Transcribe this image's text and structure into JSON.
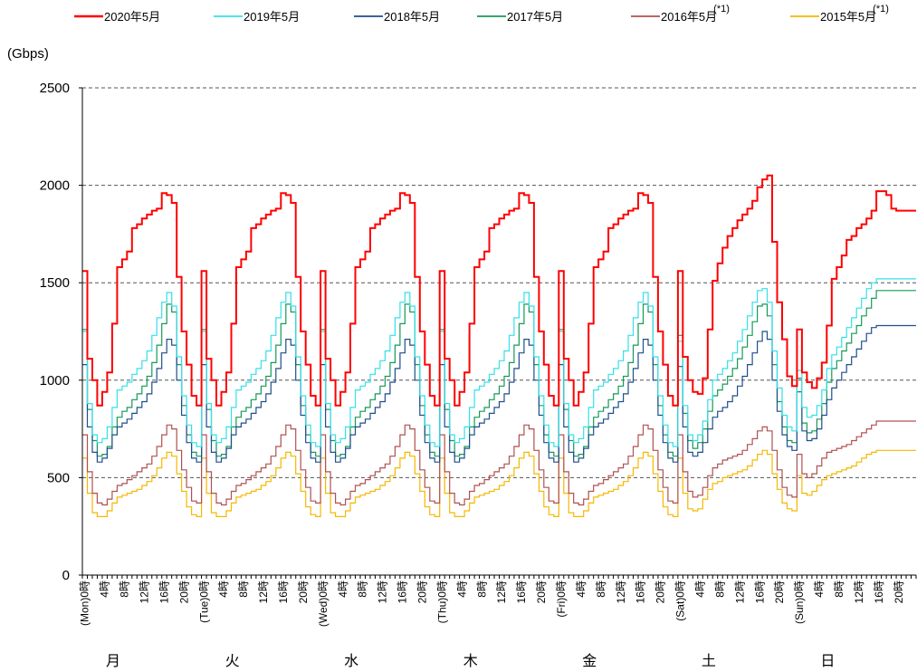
{
  "chart_data": {
    "type": "line",
    "ylabel": "(Gbps)",
    "ylim": [
      0,
      2500
    ],
    "yticks": [
      0,
      500,
      1000,
      1500,
      2000,
      2500
    ],
    "grid": "horizontal dashed",
    "legend_position": "top",
    "x_hours": [
      0,
      1,
      2,
      3,
      4,
      5,
      6,
      7,
      8,
      9,
      10,
      11,
      12,
      13,
      14,
      15,
      16,
      17,
      18,
      19,
      20,
      21,
      22,
      23
    ],
    "hour_labels": [
      "0時",
      "4時",
      "8時",
      "12時",
      "16時",
      "20時"
    ],
    "days": [
      {
        "en": "(Mon)",
        "ja": "月"
      },
      {
        "en": "(Tue)",
        "ja": "火"
      },
      {
        "en": "(Wed)",
        "ja": "水"
      },
      {
        "en": "(Thu)",
        "ja": "木"
      },
      {
        "en": "(Fri)",
        "ja": "金"
      },
      {
        "en": "(Sat)",
        "ja": "土"
      },
      {
        "en": "(Sun)",
        "ja": "日"
      }
    ],
    "series": [
      {
        "name": "2020年5月",
        "footnote": "",
        "color": "#ff0000",
        "width": 2,
        "weekday": [
          1560,
          1110,
          1000,
          870,
          940,
          1040,
          1290,
          1580,
          1620,
          1660,
          1780,
          1800,
          1830,
          1850,
          1870,
          1880,
          1960,
          1950,
          1910,
          1530,
          1250,
          1080,
          920,
          870
        ],
        "sat": [
          1560,
          1120,
          1000,
          940,
          930,
          1010,
          1260,
          1510,
          1600,
          1680,
          1740,
          1780,
          1820,
          1850,
          1880,
          1920,
          1990,
          2030,
          2050,
          1710,
          1400,
          1210,
          1020,
          970
        ],
        "sun": [
          1260,
          1040,
          990,
          960,
          1010,
          1090,
          1280,
          1520,
          1580,
          1640,
          1720,
          1740,
          1780,
          1800,
          1830,
          1870,
          1970,
          1970,
          1950,
          1880,
          1870,
          1870,
          1870,
          1870
        ]
      },
      {
        "name": "2019年5月",
        "footnote": "",
        "color": "#33e0e8",
        "width": 1.2,
        "weekday": [
          1250,
          880,
          720,
          680,
          700,
          760,
          860,
          950,
          970,
          990,
          1030,
          1060,
          1100,
          1150,
          1230,
          1320,
          1400,
          1450,
          1380,
          1120,
          920,
          770,
          680,
          660
        ],
        "sat": [
          1200,
          870,
          720,
          690,
          720,
          790,
          900,
          1000,
          1030,
          1060,
          1100,
          1140,
          1200,
          1260,
          1330,
          1400,
          1460,
          1470,
          1400,
          1150,
          960,
          820,
          760,
          740
        ],
        "sun": [
          1050,
          860,
          810,
          820,
          870,
          950,
          1060,
          1130,
          1170,
          1220,
          1270,
          1320,
          1370,
          1420,
          1470,
          1500,
          1520,
          1520,
          1520,
          1520,
          1520,
          1520,
          1520,
          1520
        ]
      },
      {
        "name": "2018年5月",
        "footnote": "",
        "color": "#1f4e8c",
        "width": 1.2,
        "weekday": [
          1080,
          760,
          630,
          580,
          600,
          650,
          720,
          760,
          780,
          800,
          830,
          860,
          890,
          930,
          990,
          1060,
          1140,
          1210,
          1180,
          1000,
          820,
          680,
          600,
          580
        ],
        "sat": [
          1070,
          760,
          630,
          610,
          630,
          680,
          750,
          810,
          840,
          860,
          890,
          920,
          970,
          1020,
          1080,
          1140,
          1200,
          1250,
          1210,
          1000,
          840,
          720,
          660,
          640
        ],
        "sun": [
          940,
          740,
          690,
          700,
          750,
          820,
          900,
          960,
          1000,
          1040,
          1080,
          1120,
          1160,
          1200,
          1240,
          1270,
          1280,
          1280,
          1280,
          1280,
          1280,
          1280,
          1280,
          1280
        ]
      },
      {
        "name": "2017年5月",
        "footnote": "",
        "color": "#159a57",
        "width": 1.2,
        "weekday": [
          1260,
          850,
          690,
          610,
          620,
          660,
          760,
          810,
          840,
          860,
          900,
          930,
          970,
          1020,
          1090,
          1180,
          1290,
          1390,
          1350,
          1080,
          870,
          720,
          630,
          610
        ],
        "sat": [
          1230,
          830,
          690,
          650,
          680,
          750,
          840,
          920,
          950,
          980,
          1020,
          1060,
          1110,
          1170,
          1230,
          1300,
          1380,
          1390,
          1330,
          1080,
          890,
          760,
          690,
          680
        ],
        "sun": [
          1010,
          780,
          730,
          740,
          800,
          880,
          990,
          1060,
          1100,
          1150,
          1190,
          1240,
          1280,
          1330,
          1370,
          1420,
          1460,
          1460,
          1460,
          1460,
          1460,
          1460,
          1460,
          1460
        ]
      },
      {
        "name": "2016年5月",
        "footnote": "(*1)",
        "color": "#b05050",
        "width": 1.2,
        "weekday": [
          720,
          530,
          420,
          370,
          360,
          390,
          430,
          460,
          470,
          490,
          510,
          530,
          550,
          570,
          610,
          660,
          720,
          770,
          750,
          640,
          540,
          450,
          380,
          370
        ],
        "sat": [
          720,
          530,
          430,
          400,
          410,
          450,
          510,
          550,
          570,
          590,
          600,
          610,
          620,
          640,
          670,
          700,
          740,
          760,
          740,
          640,
          540,
          450,
          410,
          400
        ],
        "sun": [
          620,
          520,
          500,
          520,
          560,
          600,
          630,
          640,
          650,
          660,
          670,
          690,
          710,
          730,
          750,
          770,
          790,
          790,
          790,
          790,
          790,
          790,
          790,
          790
        ]
      },
      {
        "name": "2015年5月",
        "footnote": "(*1)",
        "color": "#f5b800",
        "width": 1.2,
        "weekday": [
          600,
          420,
          320,
          300,
          300,
          330,
          370,
          400,
          410,
          420,
          430,
          440,
          460,
          480,
          510,
          550,
          600,
          630,
          610,
          520,
          430,
          350,
          310,
          300
        ],
        "sat": [
          600,
          420,
          340,
          330,
          340,
          390,
          440,
          470,
          480,
          500,
          510,
          520,
          530,
          540,
          560,
          590,
          620,
          640,
          620,
          520,
          440,
          370,
          340,
          330
        ],
        "sun": [
          510,
          420,
          410,
          430,
          460,
          490,
          510,
          520,
          530,
          540,
          550,
          560,
          580,
          600,
          620,
          630,
          640,
          640,
          640,
          640,
          640,
          640,
          640,
          640
        ]
      }
    ]
  }
}
